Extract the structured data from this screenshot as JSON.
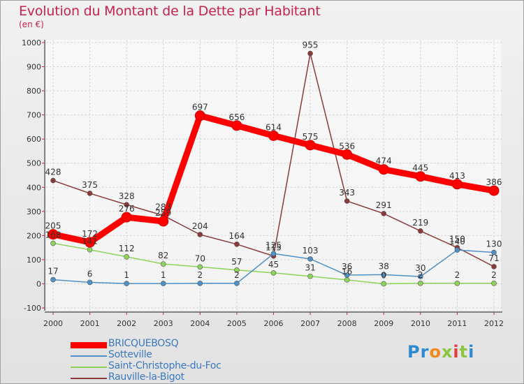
{
  "chart_data": {
    "type": "line",
    "title": "Evolution du Montant de la Dette par Habitant",
    "subtitle": "(en €)",
    "xlabel": "",
    "ylabel": "",
    "categories": [
      "2000",
      "2001",
      "2002",
      "2003",
      "2004",
      "2005",
      "2006",
      "2007",
      "2008",
      "2009",
      "2010",
      "2011",
      "2012"
    ],
    "ylim": [
      -100,
      1000
    ],
    "yticks": [
      "-100",
      "0",
      "100",
      "200",
      "300",
      "400",
      "500",
      "600",
      "700",
      "800",
      "900",
      "1000"
    ],
    "series": [
      {
        "name": "Rauville-la-Bigot",
        "color": "#8b3a3a",
        "values": [
          428,
          375,
          328,
          283,
          204,
          164,
          115,
          955,
          343,
          291,
          219,
          150,
          71
        ]
      },
      {
        "name": "Saint-Christophe-du-Foc",
        "color": "#8ed45a",
        "values": [
          168,
          141,
          112,
          82,
          70,
          57,
          45,
          31,
          16,
          0,
          2,
          2,
          2
        ]
      },
      {
        "name": "Sotteville",
        "color": "#4f90c8",
        "values": [
          17,
          6,
          1,
          1,
          2,
          2,
          125,
          103,
          36,
          38,
          30,
          140,
          130
        ]
      },
      {
        "name": "BRICQUEBOSQ",
        "color": "#ff0000",
        "values": [
          205,
          172,
          276,
          259,
          697,
          656,
          614,
          575,
          536,
          474,
          445,
          413,
          386
        ]
      }
    ],
    "legend": [
      "BRICQUEBOSQ",
      "Sotteville",
      "Saint-Christophe-du-Foc",
      "Rauville-la-Bigot"
    ]
  },
  "logo": {
    "letters": [
      "P",
      "r",
      "o",
      "x",
      "i",
      "t",
      "i"
    ],
    "colors": [
      "#2d8ad0",
      "#2d8ad0",
      "#f08a1a",
      "#8cc540",
      "#e23c3c",
      "#8cc540",
      "#2d8ad0"
    ]
  }
}
